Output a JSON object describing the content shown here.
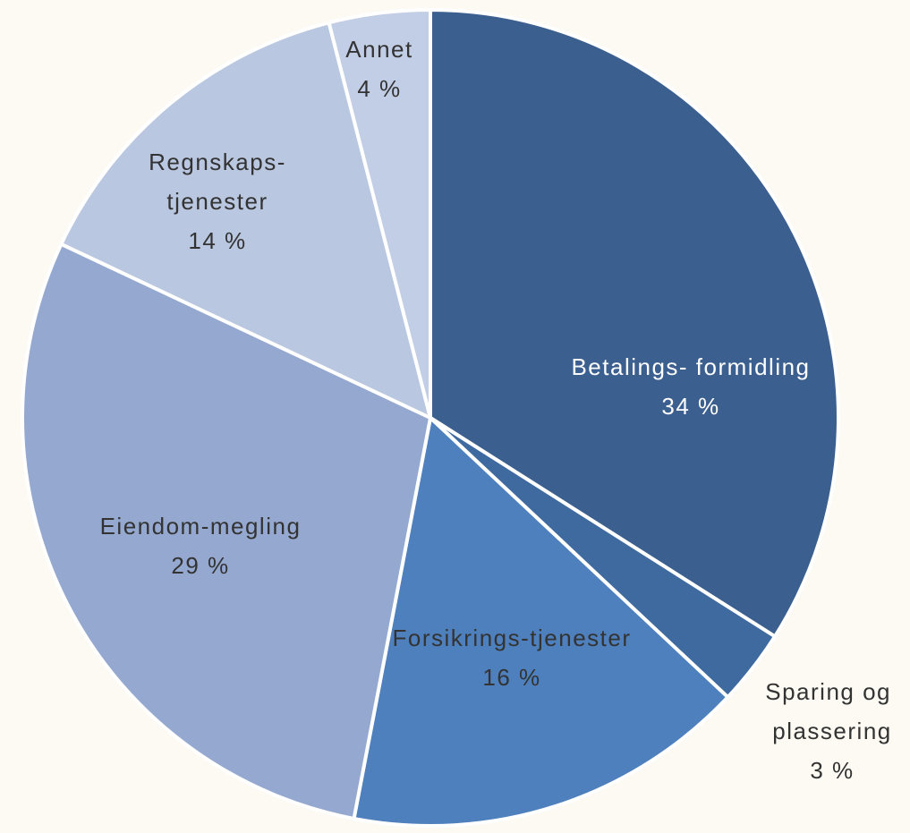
{
  "chart_data": {
    "type": "pie",
    "categories": [
      "Betalings- formidling",
      "Sparing og plassering",
      "Forsikrings-tjenester",
      "Eiendom-megling",
      "Regnskaps-tjenester",
      "Annet"
    ],
    "values": [
      34,
      3,
      16,
      29,
      14,
      4
    ],
    "value_labels": [
      "34 %",
      "3 %",
      "16 %",
      "29 %",
      "14 %",
      "4 %"
    ],
    "colors": [
      "#3b5f8f",
      "#3e6aa0",
      "#4e80bd",
      "#95a9d0",
      "#b9c7e0",
      "#c2cee5"
    ]
  }
}
